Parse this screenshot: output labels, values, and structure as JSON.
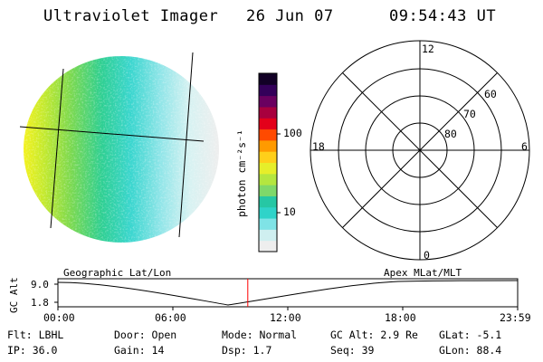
{
  "header": {
    "instrument": "Ultraviolet Imager",
    "date": "26 Jun 07",
    "time": "09:54:43 UT"
  },
  "colorbar": {
    "label": "photon cm⁻²s⁻¹",
    "ticks": [
      {
        "value": 100,
        "label": "100"
      },
      {
        "value": 10,
        "label": "10"
      }
    ],
    "colors": [
      "#eeeeee",
      "#cfeff0",
      "#7fe3e6",
      "#2fd3c9",
      "#26c7a4",
      "#7fd86a",
      "#b4e640",
      "#e6ee2a",
      "#ffcf1a",
      "#ff9a00",
      "#ff4a00",
      "#e3001a",
      "#a8003e",
      "#6a0060",
      "#34005a",
      "#120026"
    ]
  },
  "polar_plot": {
    "lt_labels": {
      "top": "12",
      "bottom": "0",
      "left": "18",
      "right": "6"
    },
    "lat_labels": [
      "80",
      "70",
      "60"
    ]
  },
  "timeline": {
    "left_label": "Geographic Lat/Lon",
    "right_label": "Apex MLat/MLT",
    "y_axis_label": "GC Alt",
    "y_ticks": [
      "9.0",
      "1.8"
    ],
    "x_ticks": [
      "00:00",
      "06:00",
      "12:00",
      "18:00",
      "23:59"
    ],
    "current_marker_hours": 9.9125,
    "marker_color": "#ff0000"
  },
  "status": {
    "row1": {
      "filter": "Flt: LBHL",
      "door": "Door: Open",
      "mode": "Mode: Normal",
      "gc_alt": "GC Alt: 2.9 Re",
      "glat": "GLat:  -5.1"
    },
    "row2": {
      "ip": "IP: 36.0",
      "gain": "Gain: 14",
      "dsp": "Dsp:    1.7",
      "seq": "Seq: 39",
      "glon": "GLon:  88.4"
    }
  }
}
